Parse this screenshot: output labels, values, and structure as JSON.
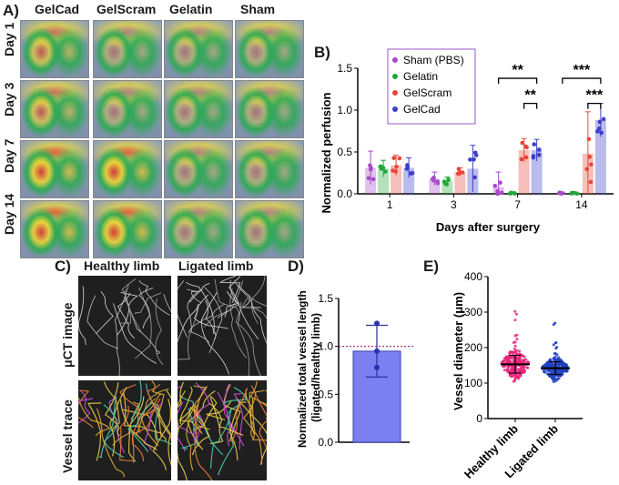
{
  "panel_a": {
    "letter": "A)",
    "columns": [
      "GelCad",
      "GelScram",
      "Gelatin",
      "Sham"
    ],
    "rows": [
      "Day 1",
      "Day 3",
      "Day 7",
      "Day 14"
    ]
  },
  "panel_b": {
    "letter": "B)",
    "chart_data": {
      "type": "bar",
      "ylabel": "Normalized perfusion",
      "xlabel": "Days after surgery",
      "categories": [
        "1",
        "3",
        "7",
        "14"
      ],
      "ylim": [
        0,
        1.5
      ],
      "yticks": [
        "0.0",
        "0.5",
        "1.0",
        "1.5"
      ],
      "legend_position": "top-left",
      "series": [
        {
          "name": "Sham (PBS)",
          "color": "#a64ac9",
          "values": [
            0.31,
            0.18,
            0.08,
            0.01
          ],
          "errors": [
            0.2,
            0.08,
            0.18,
            0.01
          ]
        },
        {
          "name": "Gelatin",
          "color": "#22a83a",
          "values": [
            0.3,
            0.15,
            0.01,
            0.01
          ],
          "errors": [
            0.1,
            0.05,
            0.01,
            0.01
          ]
        },
        {
          "name": "GelScram",
          "color": "#e8473a",
          "values": [
            0.34,
            0.26,
            0.52,
            0.48
          ],
          "errors": [
            0.12,
            0.05,
            0.14,
            0.5
          ]
        },
        {
          "name": "GelCad",
          "color": "#3d3fc9",
          "values": [
            0.31,
            0.3,
            0.52,
            0.88
          ],
          "errors": [
            0.12,
            0.28,
            0.13,
            0.2
          ]
        }
      ],
      "significance": [
        "**",
        "**",
        "***",
        "***"
      ]
    }
  },
  "panel_c": {
    "letter": "C)",
    "columns": [
      "Healthy limb",
      "Ligated limb"
    ],
    "rows": [
      "μCT image",
      "Vessel trace"
    ]
  },
  "panel_d": {
    "letter": "D)",
    "chart_data": {
      "type": "bar",
      "ylabel": "Normalized total vessel length (ligated/healthy limb)",
      "ylim": [
        0,
        1.5
      ],
      "yticks": [
        "0.0",
        "0.5",
        "1.0",
        "1.5"
      ],
      "values": [
        0.95
      ],
      "error": 0.27,
      "points": [
        1.24,
        0.95,
        0.78
      ],
      "reference_line": 1.0,
      "color": "#7b7ff0"
    }
  },
  "panel_e": {
    "letter": "E)",
    "chart_data": {
      "type": "scatter",
      "ylabel": "Vessel diameter (μm)",
      "categories": [
        "Healthy limb",
        "Ligated limb"
      ],
      "ylim": [
        0,
        400
      ],
      "yticks": [
        "0",
        "100",
        "200",
        "300",
        "400"
      ],
      "means": [
        153,
        142
      ],
      "sd": [
        25,
        18
      ],
      "colors": [
        "#e8247a",
        "#1f3fbf"
      ]
    }
  }
}
